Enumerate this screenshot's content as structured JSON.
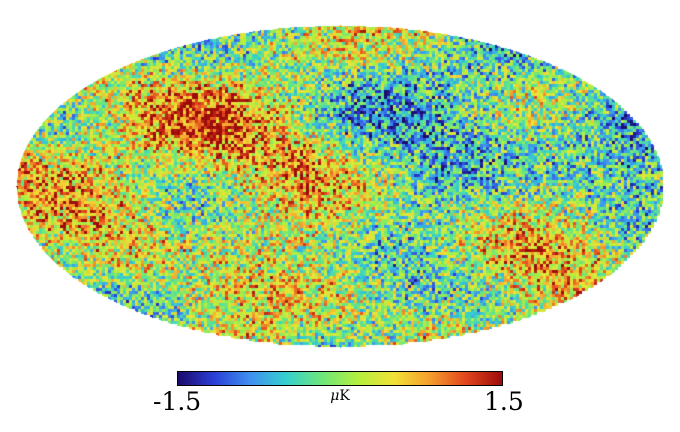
{
  "colorbar": {
    "min_label": "-1.5",
    "max_label": "1.5",
    "unit_prefix": "μ",
    "unit_suffix": "K",
    "min": -1.5,
    "max": 1.5,
    "colormap": [
      "#1b0a6b",
      "#2a3fd6",
      "#3f8ff0",
      "#34d0cf",
      "#6ee67a",
      "#b4ef3e",
      "#f1e237",
      "#f49d2e",
      "#e2451c",
      "#9c0b0b"
    ]
  },
  "map": {
    "projection": "mollweide",
    "background": "#ffffff"
  }
}
